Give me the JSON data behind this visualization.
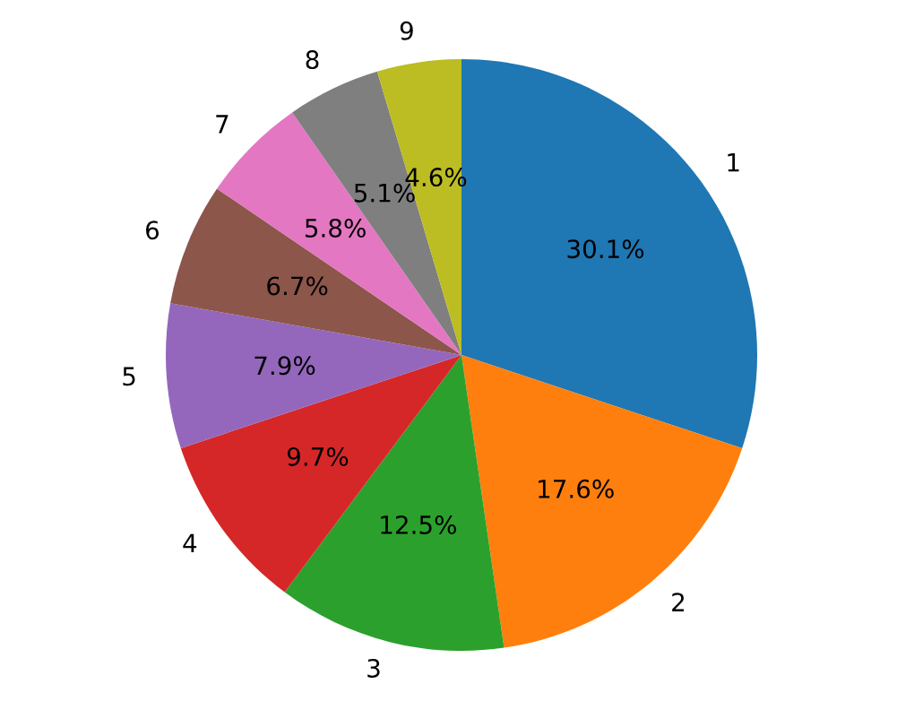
{
  "chart_data": {
    "type": "pie",
    "categories": [
      "1",
      "2",
      "3",
      "4",
      "5",
      "6",
      "7",
      "8",
      "9"
    ],
    "values": [
      30.1,
      17.6,
      12.5,
      9.7,
      7.9,
      6.7,
      5.8,
      5.1,
      4.6
    ],
    "value_labels": [
      "30.1%",
      "17.6%",
      "12.5%",
      "9.7%",
      "7.9%",
      "6.7%",
      "5.8%",
      "5.1%",
      "4.6%"
    ],
    "colors": [
      "#1f77b4",
      "#ff7f0e",
      "#2ca02c",
      "#d62728",
      "#9467bd",
      "#8c564b",
      "#e377c2",
      "#7f7f7f",
      "#bcbd22"
    ],
    "legend": false
  }
}
